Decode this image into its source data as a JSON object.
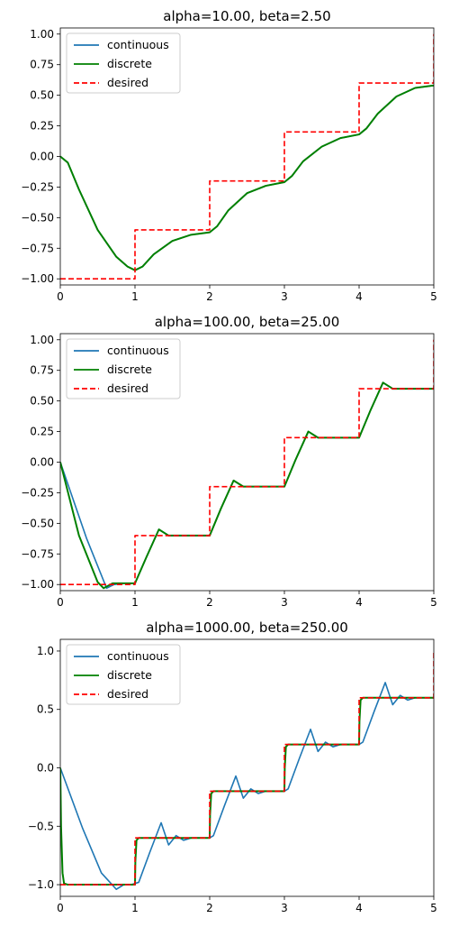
{
  "colors": {
    "continuous": "#1f77b4",
    "discrete": "#008000",
    "desired": "#ff0000"
  },
  "chart_data": [
    {
      "type": "line",
      "title": "alpha=10.00, beta=2.50",
      "xlim": [
        0,
        5
      ],
      "ylim": [
        -1.05,
        1.05
      ],
      "x_ticks": [
        0,
        1,
        2,
        3,
        4,
        5
      ],
      "x_tick_labels": [
        "0",
        "1",
        "2",
        "3",
        "4",
        "5"
      ],
      "y_ticks": [
        -1.0,
        -0.75,
        -0.5,
        -0.25,
        0.0,
        0.25,
        0.5,
        0.75,
        1.0
      ],
      "y_tick_labels": [
        "−1.00",
        "−0.75",
        "−0.50",
        "−0.25",
        "0.00",
        "0.25",
        "0.50",
        "0.75",
        "1.00"
      ],
      "legend_position": "top-left",
      "series": [
        {
          "name": "continuous",
          "style": "solid",
          "x": [
            0,
            0.1,
            0.25,
            0.5,
            0.75,
            0.9,
            1.0,
            1.1,
            1.25,
            1.5,
            1.75,
            2.0,
            2.1,
            2.25,
            2.5,
            2.75,
            3.0,
            3.1,
            3.25,
            3.5,
            3.75,
            4.0,
            4.1,
            4.25,
            4.5,
            4.75,
            5.0
          ],
          "y": [
            0,
            -0.05,
            -0.27,
            -0.6,
            -0.82,
            -0.9,
            -0.93,
            -0.9,
            -0.8,
            -0.69,
            -0.64,
            -0.62,
            -0.57,
            -0.44,
            -0.3,
            -0.24,
            -0.21,
            -0.16,
            -0.04,
            0.08,
            0.15,
            0.18,
            0.23,
            0.35,
            0.49,
            0.56,
            0.58
          ]
        },
        {
          "name": "discrete",
          "style": "solid",
          "x": [
            0,
            0.1,
            0.25,
            0.5,
            0.75,
            0.9,
            1.0,
            1.1,
            1.25,
            1.5,
            1.75,
            2.0,
            2.1,
            2.25,
            2.5,
            2.75,
            3.0,
            3.1,
            3.25,
            3.5,
            3.75,
            4.0,
            4.1,
            4.25,
            4.5,
            4.75,
            5.0
          ],
          "y": [
            0,
            -0.05,
            -0.27,
            -0.6,
            -0.82,
            -0.9,
            -0.93,
            -0.9,
            -0.8,
            -0.69,
            -0.64,
            -0.62,
            -0.57,
            -0.44,
            -0.3,
            -0.24,
            -0.21,
            -0.16,
            -0.04,
            0.08,
            0.15,
            0.18,
            0.23,
            0.35,
            0.49,
            0.56,
            0.58
          ]
        },
        {
          "name": "desired",
          "style": "dashed",
          "x": [
            0,
            1,
            1,
            2,
            2,
            3,
            3,
            4,
            4,
            5,
            5
          ],
          "y": [
            -1,
            -1,
            -0.6,
            -0.6,
            -0.2,
            -0.2,
            0.2,
            0.2,
            0.6,
            0.6,
            1.0
          ]
        }
      ]
    },
    {
      "type": "line",
      "title": "alpha=100.00, beta=25.00",
      "xlim": [
        0,
        5
      ],
      "ylim": [
        -1.05,
        1.05
      ],
      "x_ticks": [
        0,
        1,
        2,
        3,
        4,
        5
      ],
      "x_tick_labels": [
        "0",
        "1",
        "2",
        "3",
        "4",
        "5"
      ],
      "y_ticks": [
        -1.0,
        -0.75,
        -0.5,
        -0.25,
        0.0,
        0.25,
        0.5,
        0.75,
        1.0
      ],
      "y_tick_labels": [
        "−1.00",
        "−0.75",
        "−0.50",
        "−0.25",
        "0.00",
        "0.25",
        "0.50",
        "0.75",
        "1.00"
      ],
      "legend_position": "top-left",
      "series": [
        {
          "name": "continuous",
          "style": "solid",
          "x": [
            0,
            0.35,
            0.62,
            0.72,
            0.85,
            1.0,
            1.15,
            1.32,
            1.45,
            1.6,
            2.0,
            2.15,
            2.32,
            2.45,
            2.6,
            3.0,
            3.15,
            3.32,
            3.45,
            3.6,
            4.0,
            4.15,
            4.32,
            4.45,
            4.6,
            5.0
          ],
          "y": [
            0,
            -0.62,
            -1.03,
            -1.0,
            -0.99,
            -0.99,
            -0.78,
            -0.55,
            -0.6,
            -0.6,
            -0.6,
            -0.38,
            -0.15,
            -0.2,
            -0.2,
            -0.2,
            0.02,
            0.25,
            0.2,
            0.2,
            0.2,
            0.42,
            0.65,
            0.6,
            0.6,
            0.6
          ]
        },
        {
          "name": "discrete",
          "style": "solid",
          "x": [
            0,
            0.25,
            0.5,
            0.58,
            0.7,
            0.85,
            1.0,
            1.15,
            1.32,
            1.45,
            1.6,
            2.0,
            2.15,
            2.32,
            2.45,
            2.6,
            3.0,
            3.15,
            3.32,
            3.45,
            3.6,
            4.0,
            4.15,
            4.32,
            4.45,
            4.6,
            5.0
          ],
          "y": [
            0,
            -0.6,
            -0.98,
            -1.03,
            -0.99,
            -0.99,
            -0.99,
            -0.78,
            -0.55,
            -0.6,
            -0.6,
            -0.6,
            -0.38,
            -0.15,
            -0.2,
            -0.2,
            -0.2,
            0.02,
            0.25,
            0.2,
            0.2,
            0.2,
            0.42,
            0.65,
            0.6,
            0.6,
            0.6
          ]
        },
        {
          "name": "desired",
          "style": "dashed",
          "x": [
            0,
            1,
            1,
            2,
            2,
            3,
            3,
            4,
            4,
            5,
            5
          ],
          "y": [
            -1,
            -1,
            -0.6,
            -0.6,
            -0.2,
            -0.2,
            0.2,
            0.2,
            0.6,
            0.6,
            1.0
          ]
        }
      ]
    },
    {
      "type": "line",
      "title": "alpha=1000.00, beta=250.00",
      "xlim": [
        0,
        5
      ],
      "ylim": [
        -1.1,
        1.1
      ],
      "x_ticks": [
        0,
        1,
        2,
        3,
        4,
        5
      ],
      "x_tick_labels": [
        "0",
        "1",
        "2",
        "3",
        "4",
        "5"
      ],
      "y_ticks": [
        -1.0,
        -0.5,
        0.0,
        0.5,
        1.0
      ],
      "y_tick_labels": [
        "−1.0",
        "−0.5",
        "0.0",
        "0.5",
        "1.0"
      ],
      "legend_position": "top-left",
      "series": [
        {
          "name": "continuous",
          "style": "solid",
          "x": [
            0,
            0.3,
            0.55,
            0.75,
            0.85,
            0.95,
            1.05,
            1.2,
            1.35,
            1.45,
            1.55,
            1.65,
            1.75,
            2.0,
            2.05,
            2.2,
            2.35,
            2.45,
            2.55,
            2.65,
            2.75,
            3.0,
            3.05,
            3.2,
            3.35,
            3.45,
            3.55,
            3.65,
            3.75,
            4.0,
            4.05,
            4.2,
            4.35,
            4.45,
            4.55,
            4.65,
            4.75,
            5.0
          ],
          "y": [
            0,
            -0.52,
            -0.9,
            -1.04,
            -1.0,
            -1.0,
            -0.98,
            -0.72,
            -0.47,
            -0.66,
            -0.58,
            -0.62,
            -0.6,
            -0.6,
            -0.58,
            -0.32,
            -0.07,
            -0.26,
            -0.18,
            -0.22,
            -0.2,
            -0.2,
            -0.18,
            0.08,
            0.33,
            0.14,
            0.22,
            0.18,
            0.2,
            0.2,
            0.22,
            0.48,
            0.73,
            0.54,
            0.62,
            0.58,
            0.6,
            0.6
          ]
        },
        {
          "name": "discrete",
          "style": "solid",
          "x": [
            0,
            0.01,
            0.03,
            0.05,
            0.1,
            1.0,
            1.005,
            1.02,
            1.05,
            2.0,
            2.005,
            2.02,
            2.05,
            3.0,
            3.005,
            3.02,
            3.05,
            4.0,
            4.005,
            4.02,
            4.05,
            5.0
          ],
          "y": [
            0,
            -0.5,
            -0.9,
            -0.99,
            -1.0,
            -1.0,
            -0.8,
            -0.62,
            -0.6,
            -0.6,
            -0.4,
            -0.22,
            -0.2,
            -0.2,
            0.0,
            0.18,
            0.2,
            0.2,
            0.4,
            0.58,
            0.6,
            0.6
          ]
        },
        {
          "name": "desired",
          "style": "dashed",
          "x": [
            0,
            1,
            1,
            2,
            2,
            3,
            3,
            4,
            4,
            5,
            5
          ],
          "y": [
            -1,
            -1,
            -0.6,
            -0.6,
            -0.2,
            -0.2,
            0.2,
            0.2,
            0.6,
            0.6,
            1.0
          ]
        }
      ]
    }
  ]
}
